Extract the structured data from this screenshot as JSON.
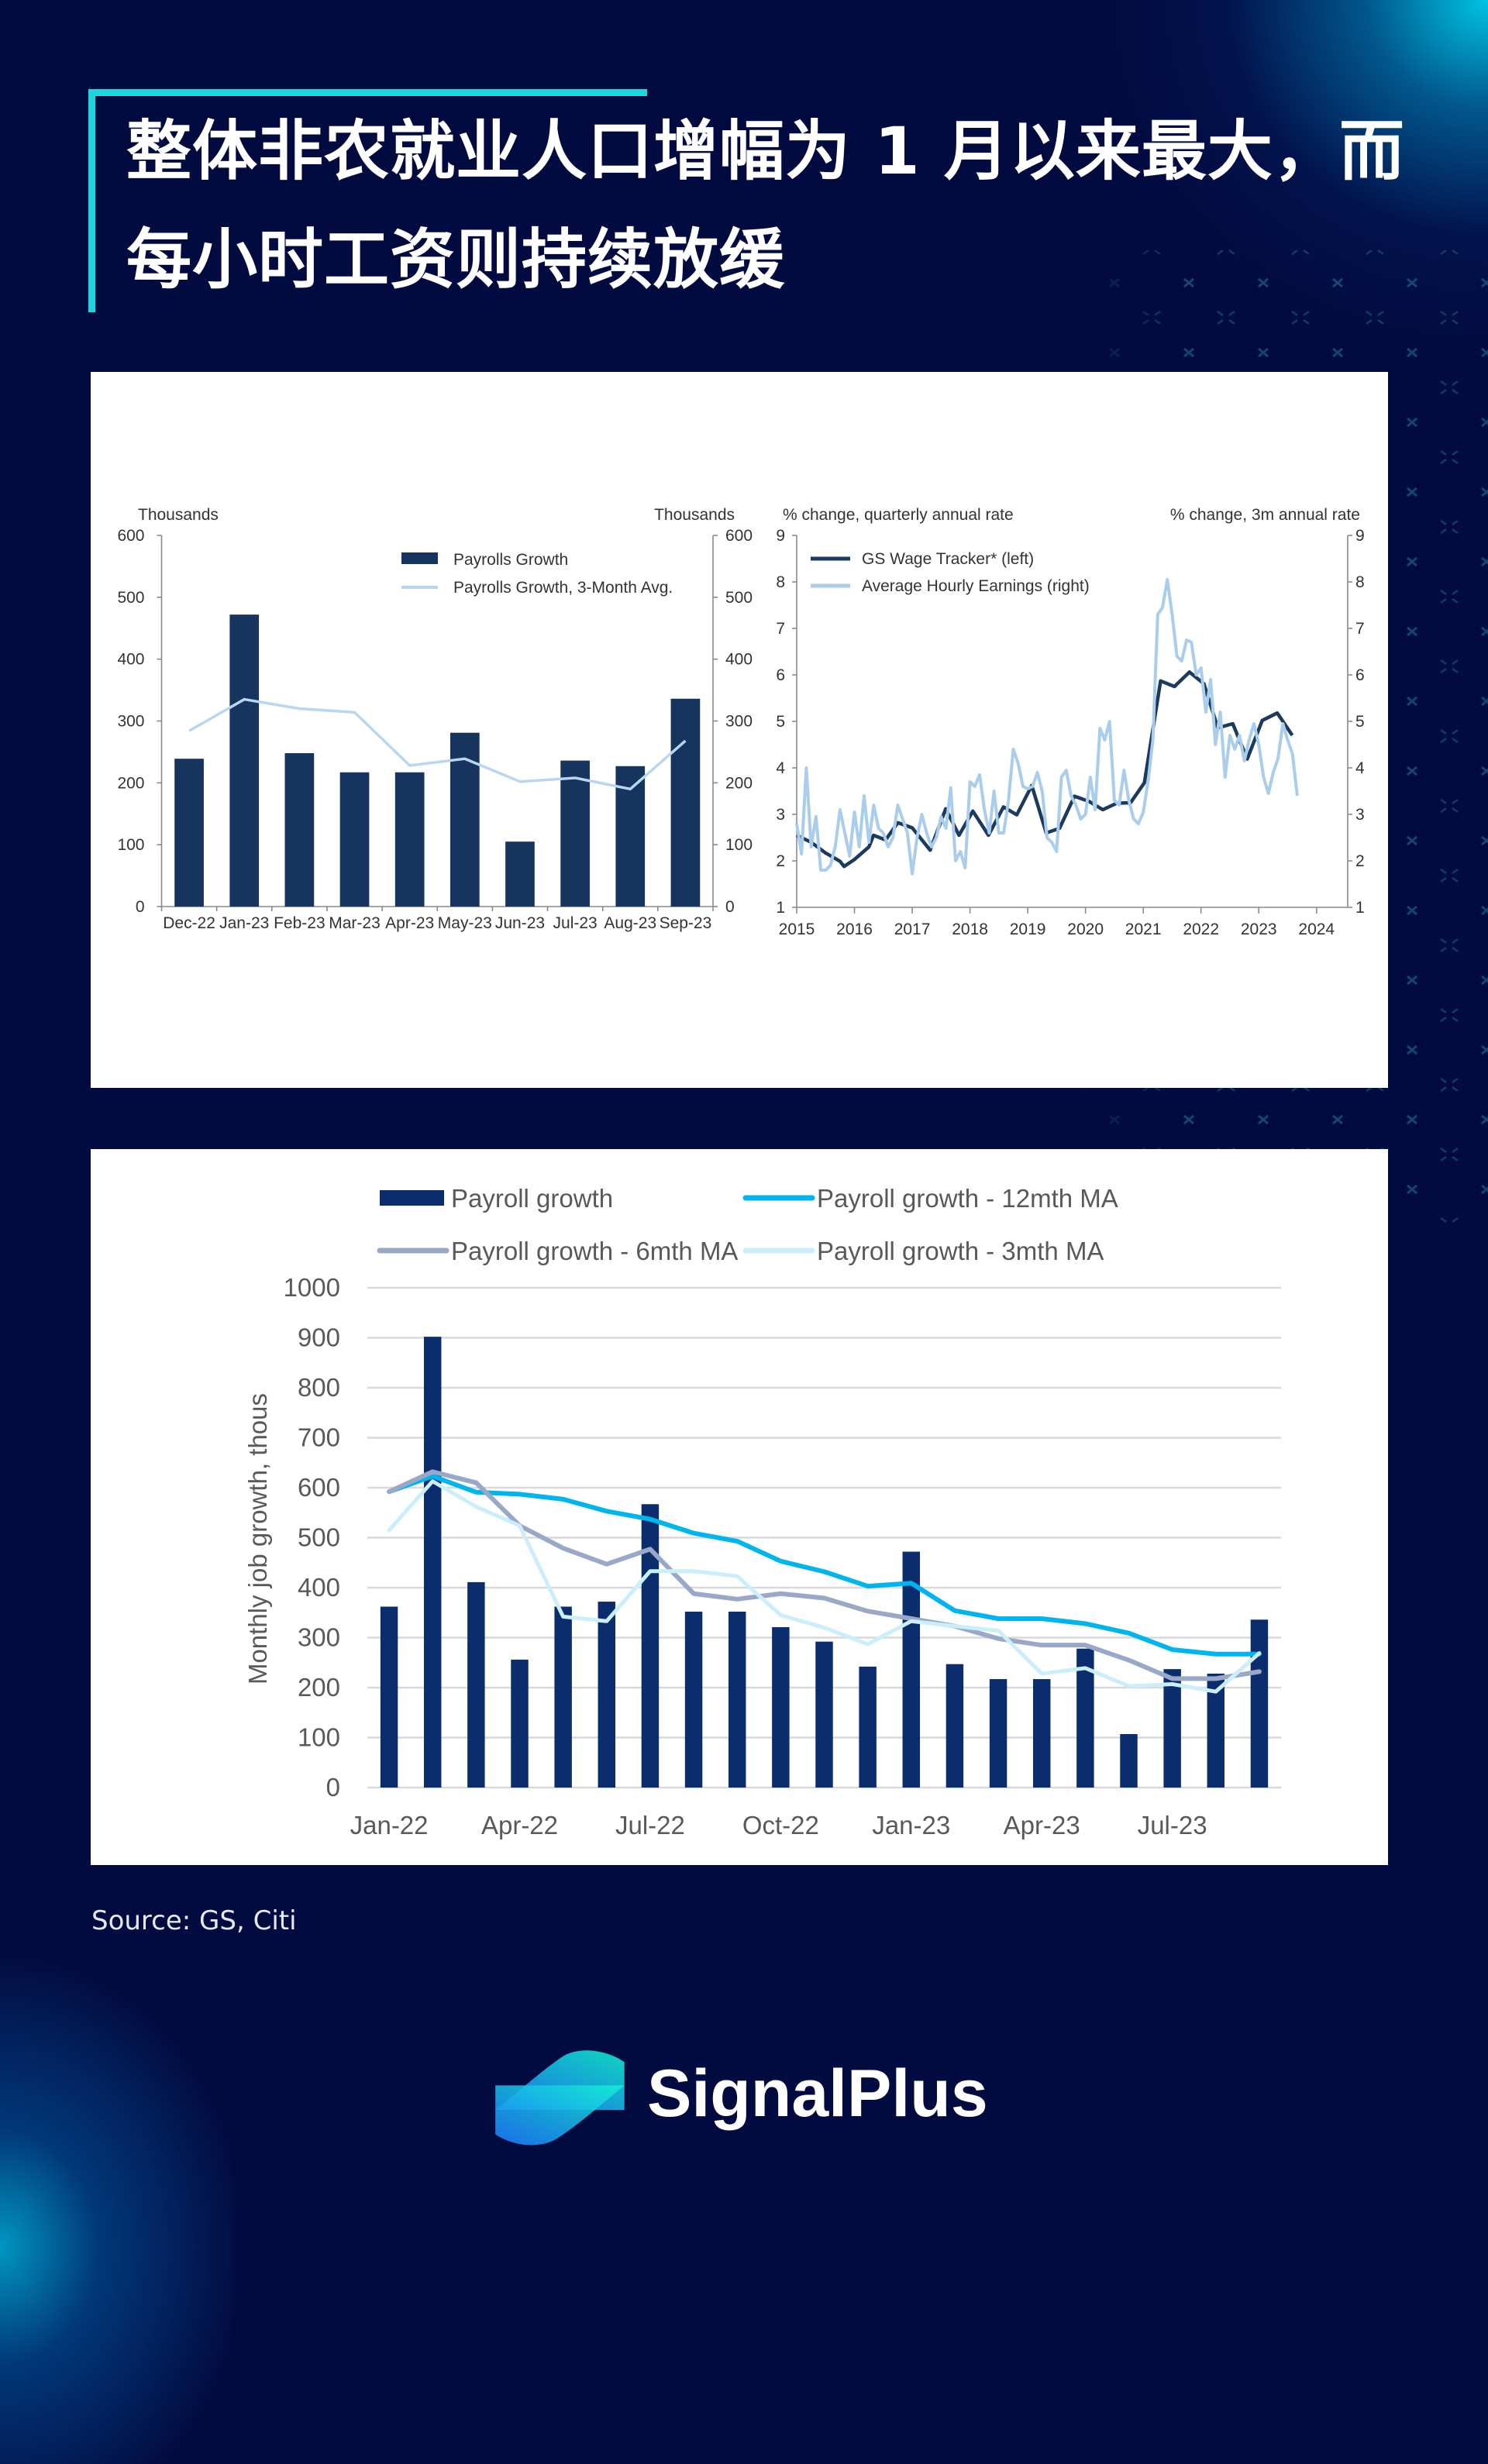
{
  "title": {
    "lines": [
      "整体非农就业人口增幅为 1 月以来最大，而",
      "每小时工资则持续放缓"
    ]
  },
  "source": "Source: GS, Citi",
  "brand": {
    "name": "SignalPlus",
    "logo_icon": "signalplus-logo-icon"
  },
  "colors": {
    "background": "#020b40",
    "accent": "#1fd6dc",
    "panel": "#ffffff",
    "logo_gradient": [
      "#1e7dff",
      "#12f0d2"
    ],
    "pattern": "#1b5a80"
  },
  "chart_data": [
    {
      "id": "payrolls-growth",
      "type": "bar",
      "title": "",
      "xlabel": "",
      "ylabel_left": "Thousands",
      "ylabel_right": "Thousands",
      "categories": [
        "Dec-22",
        "Jan-23",
        "Feb-23",
        "Mar-23",
        "Apr-23",
        "May-23",
        "Jun-23",
        "Jul-23",
        "Aug-23",
        "Sep-23"
      ],
      "ylim": [
        0,
        600
      ],
      "yticks": [
        0,
        100,
        200,
        300,
        400,
        500,
        600
      ],
      "grid": false,
      "legend": "top-right",
      "series": [
        {
          "name": "Payrolls Growth",
          "kind": "bar",
          "color": "#17345e",
          "values": [
            239,
            472,
            248,
            217,
            217,
            281,
            105,
            236,
            227,
            336
          ]
        },
        {
          "name": "Payrolls Growth, 3-Month Avg.",
          "kind": "line",
          "color": "#b9d6f0",
          "values": [
            284,
            335,
            320,
            314,
            228,
            239,
            202,
            208,
            190,
            268
          ]
        }
      ]
    },
    {
      "id": "wage-tracker",
      "type": "line",
      "title": "",
      "xlabel": "",
      "ylabel_left": "% change, quarterly annual rate",
      "ylabel_right": "% change, 3m annual rate",
      "xlim": [
        2015,
        2024.54
      ],
      "xticks": [
        2015,
        2016,
        2017,
        2018,
        2019,
        2020,
        2021,
        2022,
        2023,
        2024
      ],
      "ylim": [
        1,
        9
      ],
      "yticks": [
        1,
        2,
        3,
        4,
        5,
        6,
        7,
        8,
        9
      ],
      "grid": false,
      "legend": "top-left",
      "series": [
        {
          "name": "GS Wage Tracker* (left)",
          "axis": "left",
          "frequency": "quarterly",
          "color": "#1b3a5f",
          "points": [
            [
              2015.0,
              2.55
            ],
            [
              2015.25,
              2.4
            ],
            [
              2015.5,
              2.17
            ],
            [
              2015.75,
              1.99
            ],
            [
              2015.82,
              1.88
            ],
            [
              2016.0,
              2.03
            ],
            [
              2016.25,
              2.3
            ],
            [
              2016.33,
              2.55
            ],
            [
              2016.54,
              2.45
            ],
            [
              2016.75,
              2.82
            ],
            [
              2017.0,
              2.71
            ],
            [
              2017.31,
              2.23
            ],
            [
              2017.58,
              3.12
            ],
            [
              2017.81,
              2.55
            ],
            [
              2018.05,
              3.07
            ],
            [
              2018.32,
              2.55
            ],
            [
              2018.58,
              3.16
            ],
            [
              2018.81,
              2.99
            ],
            [
              2019.07,
              3.62
            ],
            [
              2019.32,
              2.6
            ],
            [
              2019.55,
              2.7
            ],
            [
              2019.81,
              3.39
            ],
            [
              2020.06,
              3.28
            ],
            [
              2020.3,
              3.1
            ],
            [
              2020.54,
              3.24
            ],
            [
              2020.78,
              3.25
            ],
            [
              2021.02,
              3.68
            ],
            [
              2021.3,
              5.87
            ],
            [
              2021.54,
              5.75
            ],
            [
              2021.8,
              6.06
            ],
            [
              2022.05,
              5.81
            ],
            [
              2022.29,
              4.86
            ],
            [
              2022.55,
              4.95
            ],
            [
              2022.8,
              4.19
            ],
            [
              2023.06,
              5.02
            ],
            [
              2023.32,
              5.18
            ],
            [
              2023.58,
              4.7
            ]
          ]
        },
        {
          "name": "Average Hourly Earnings (right)",
          "axis": "right",
          "frequency": "monthly",
          "start_year": 2015,
          "color": "#a9cdeb",
          "values": [
            2.8,
            2.15,
            4.0,
            2.3,
            2.95,
            1.8,
            1.8,
            1.9,
            2.3,
            3.1,
            2.6,
            2.1,
            3.05,
            2.3,
            3.4,
            2.4,
            3.2,
            2.7,
            2.6,
            2.3,
            2.5,
            3.2,
            2.9,
            2.6,
            1.72,
            2.5,
            3.0,
            2.6,
            2.3,
            2.5,
            2.95,
            2.7,
            3.57,
            2.0,
            2.2,
            1.85,
            3.7,
            3.6,
            3.85,
            3.1,
            2.6,
            3.5,
            2.6,
            2.6,
            3.3,
            4.4,
            4.1,
            3.6,
            3.55,
            3.6,
            3.9,
            3.5,
            2.5,
            2.4,
            2.2,
            3.8,
            3.95,
            3.4,
            3.2,
            2.9,
            3.0,
            3.8,
            3.1,
            4.85,
            4.6,
            5.0,
            3.3,
            3.2,
            3.95,
            3.3,
            2.9,
            2.8,
            3.05,
            3.7,
            4.6,
            7.3,
            7.45,
            8.05,
            7.3,
            6.4,
            6.3,
            6.75,
            6.7,
            6.0,
            6.15,
            5.2,
            5.9,
            4.5,
            5.2,
            3.8,
            4.7,
            4.4,
            4.7,
            4.15,
            4.6,
            4.95,
            4.5,
            3.8,
            3.45,
            3.9,
            4.2,
            4.95,
            4.6,
            4.3,
            3.4
          ]
        }
      ]
    },
    {
      "id": "payroll-moving-averages",
      "type": "bar",
      "title": "",
      "xlabel": "",
      "ylabel": "Monthly job growth, thous",
      "categories": [
        "Jan-22",
        "Feb-22",
        "Mar-22",
        "Apr-22",
        "May-22",
        "Jun-22",
        "Jul-22",
        "Aug-22",
        "Sep-22",
        "Oct-22",
        "Nov-22",
        "Dec-22",
        "Jan-23",
        "Feb-23",
        "Mar-23",
        "Apr-23",
        "May-23",
        "Jun-23",
        "Jul-23",
        "Aug-23",
        "Sep-23"
      ],
      "xticks": [
        "Jan-22",
        "Apr-22",
        "Jul-22",
        "Oct-22",
        "Jan-23",
        "Apr-23",
        "Jul-23"
      ],
      "ylim": [
        0,
        1000
      ],
      "yticks": [
        0,
        100,
        200,
        300,
        400,
        500,
        600,
        700,
        800,
        900,
        1000
      ],
      "grid": true,
      "legend": "top",
      "series": [
        {
          "name": "Payroll growth",
          "kind": "bar",
          "color": "#0b2d6e",
          "values": [
            362,
            902,
            411,
            256,
            362,
            372,
            567,
            352,
            352,
            321,
            292,
            242,
            472,
            247,
            217,
            217,
            278,
            107,
            237,
            228,
            336
          ]
        },
        {
          "name": "Payroll growth - 12mth MA",
          "kind": "line",
          "color": "#00b5ee",
          "values": [
            592,
            623,
            591,
            587,
            577,
            553,
            537,
            509,
            493,
            453,
            432,
            403,
            409,
            354,
            338,
            338,
            328,
            309,
            276,
            267,
            267
          ]
        },
        {
          "name": "Payroll growth - 6mth MA",
          "kind": "line",
          "color": "#9aa8c7",
          "values": [
            592,
            632,
            610,
            524,
            479,
            447,
            477,
            388,
            377,
            388,
            379,
            353,
            338,
            323,
            298,
            285,
            285,
            255,
            218,
            218,
            232
          ]
        },
        {
          "name": "Payroll growth - 3mth MA",
          "kind": "line",
          "color": "#cbeefb",
          "values": [
            515,
            613,
            562,
            524,
            342,
            333,
            433,
            433,
            423,
            345,
            320,
            287,
            333,
            323,
            314,
            228,
            239,
            203,
            207,
            192,
            269
          ]
        }
      ]
    }
  ]
}
